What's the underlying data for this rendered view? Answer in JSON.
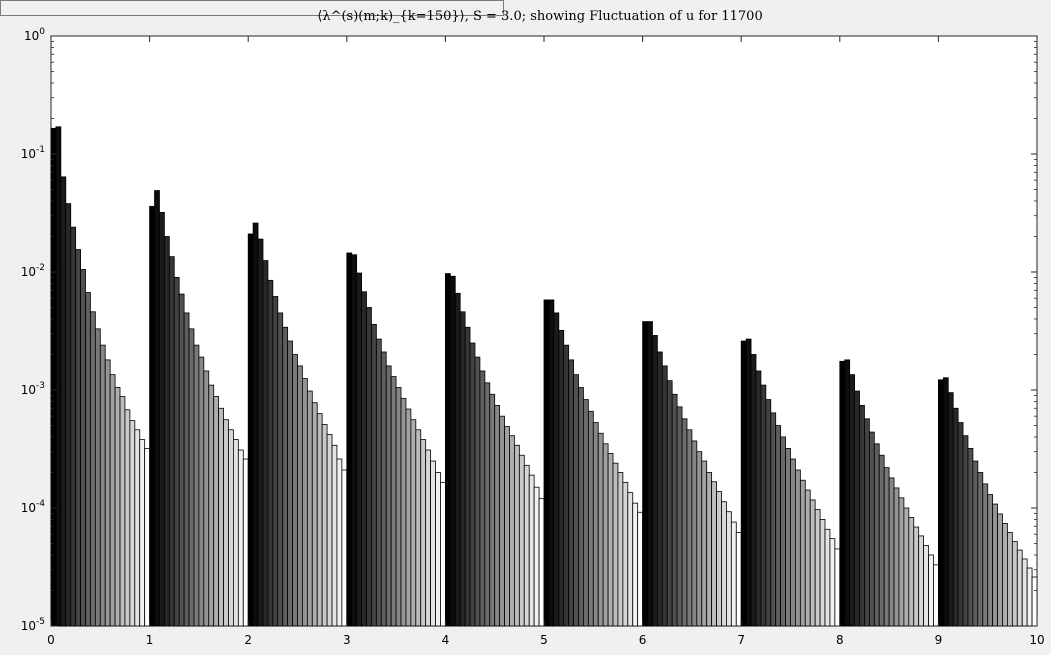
{
  "header_box": {
    "label": ""
  },
  "chart_data": {
    "type": "bar",
    "title": "⟨λ^(s)(m;k)_{k=150}⟩, S = 3.0; showing Fluctuation of u for 11700",
    "xlabel": "",
    "ylabel": "",
    "yscale": "log",
    "xlim": [
      0,
      10
    ],
    "ylim": [
      1e-05,
      1
    ],
    "grid": false,
    "legend": "none",
    "x_ticks": [
      "0",
      "1",
      "2",
      "3",
      "4",
      "5",
      "6",
      "7",
      "8",
      "9",
      "10"
    ],
    "y_ticks": [
      {
        "base": "10",
        "exp": "0"
      },
      {
        "base": "10",
        "exp": "-1"
      },
      {
        "base": "10",
        "exp": "-2"
      },
      {
        "base": "10",
        "exp": "-3"
      },
      {
        "base": "10",
        "exp": "-4"
      },
      {
        "base": "10",
        "exp": "-5"
      }
    ],
    "bars_per_group": 20,
    "bar_width": 0.05,
    "groups": [
      {
        "x_start": 0.0,
        "values": [
          0.165,
          0.17,
          0.064,
          0.038,
          0.024,
          0.0155,
          0.0105,
          0.0067,
          0.0046,
          0.0033,
          0.0024,
          0.0018,
          0.00135,
          0.00105,
          0.00088,
          0.00068,
          0.00055,
          0.00046,
          0.00038,
          0.00032
        ]
      },
      {
        "x_start": 1.0,
        "values": [
          0.036,
          0.049,
          0.032,
          0.02,
          0.0135,
          0.009,
          0.0065,
          0.0045,
          0.0033,
          0.0024,
          0.0019,
          0.00145,
          0.0011,
          0.00088,
          0.0007,
          0.00056,
          0.00046,
          0.00038,
          0.00031,
          0.00026
        ]
      },
      {
        "x_start": 2.0,
        "values": [
          0.021,
          0.026,
          0.019,
          0.0125,
          0.0085,
          0.0062,
          0.0045,
          0.0034,
          0.0026,
          0.002,
          0.0016,
          0.00125,
          0.00098,
          0.00078,
          0.00063,
          0.00051,
          0.00042,
          0.00034,
          0.00026,
          0.00021
        ]
      },
      {
        "x_start": 3.0,
        "values": [
          0.0145,
          0.014,
          0.0098,
          0.0068,
          0.005,
          0.0036,
          0.0027,
          0.0021,
          0.0016,
          0.0013,
          0.00105,
          0.00085,
          0.00069,
          0.00056,
          0.00046,
          0.00038,
          0.00031,
          0.00025,
          0.0002,
          0.000165
        ]
      },
      {
        "x_start": 4.0,
        "values": [
          0.0097,
          0.0092,
          0.0066,
          0.0046,
          0.0034,
          0.0025,
          0.0019,
          0.00145,
          0.00115,
          0.00092,
          0.00074,
          0.0006,
          0.00049,
          0.00041,
          0.00034,
          0.00028,
          0.00023,
          0.00019,
          0.00015,
          0.00012
        ]
      },
      {
        "x_start": 5.0,
        "values": [
          0.0058,
          0.0058,
          0.0045,
          0.0032,
          0.0024,
          0.0018,
          0.00135,
          0.00105,
          0.00083,
          0.00066,
          0.00053,
          0.00043,
          0.00035,
          0.00029,
          0.00024,
          0.0002,
          0.000165,
          0.000135,
          0.00011,
          9.2e-05
        ]
      },
      {
        "x_start": 6.0,
        "values": [
          0.0038,
          0.0038,
          0.0029,
          0.0021,
          0.0016,
          0.0012,
          0.00092,
          0.00072,
          0.00057,
          0.00046,
          0.00037,
          0.0003,
          0.00025,
          0.0002,
          0.000167,
          0.000138,
          0.000113,
          9.3e-05,
          7.6e-05,
          6.2e-05
        ]
      },
      {
        "x_start": 7.0,
        "values": [
          0.0026,
          0.0027,
          0.002,
          0.00145,
          0.0011,
          0.00083,
          0.00064,
          0.0005,
          0.0004,
          0.00032,
          0.00026,
          0.00021,
          0.000172,
          0.000142,
          0.000117,
          9.7e-05,
          8e-05,
          6.6e-05,
          5.5e-05,
          4.5e-05
        ]
      },
      {
        "x_start": 8.0,
        "values": [
          0.00175,
          0.0018,
          0.00135,
          0.00098,
          0.00074,
          0.00057,
          0.00044,
          0.00035,
          0.00028,
          0.00022,
          0.00018,
          0.000148,
          0.000122,
          0.0001,
          8.3e-05,
          6.9e-05,
          5.8e-05,
          4.8e-05,
          4e-05,
          3.3e-05
        ]
      },
      {
        "x_start": 9.0,
        "values": [
          0.00122,
          0.00127,
          0.00095,
          0.0007,
          0.00053,
          0.00041,
          0.00032,
          0.00025,
          0.0002,
          0.00016,
          0.00013,
          0.000108,
          8.9e-05,
          7.4e-05,
          6.2e-05,
          5.2e-05,
          4.4e-05,
          3.7e-05,
          3.1e-05,
          2.6e-05
        ]
      }
    ]
  }
}
